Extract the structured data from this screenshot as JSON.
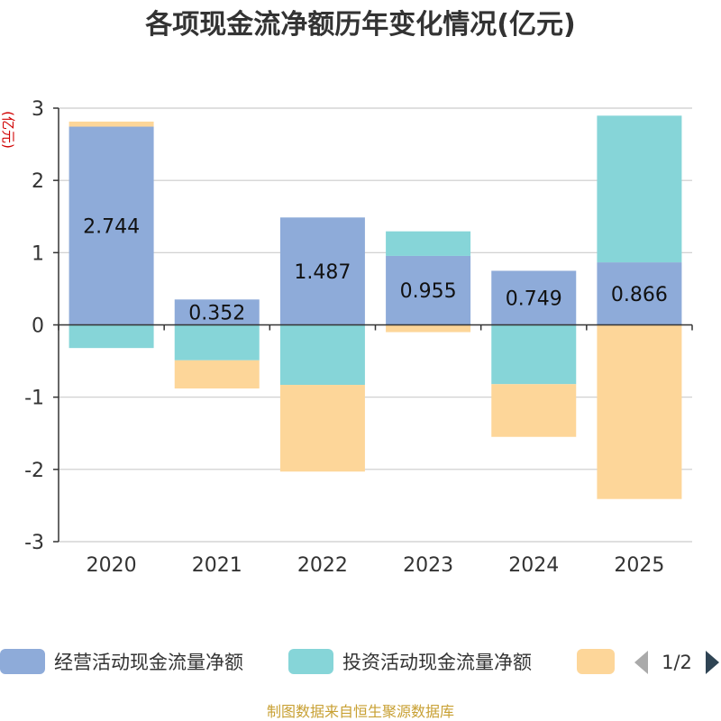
{
  "colors": {
    "operating": "#8eabd9",
    "investing": "#86d5d8",
    "financing": "#fdd699",
    "axis": "#333333",
    "grid": "#cccccc",
    "title": "#333333",
    "unit": "#d00000",
    "source": "#c8a033",
    "pager_active": "#2f4454",
    "pager_inactive": "#aaaaaa"
  },
  "chart_data": {
    "type": "bar",
    "stacked": true,
    "title": "各项现金流净额历年变化情况(亿元)",
    "ylabel": "(亿元)",
    "ylim": [
      -3,
      3
    ],
    "yticks": [
      3,
      2,
      1,
      0,
      -1,
      -2,
      -3
    ],
    "categories": [
      "2020",
      "2021",
      "2022",
      "2023",
      "2024",
      "2025"
    ],
    "series": [
      {
        "name": "经营活动现金流量净额",
        "key": "operating",
        "values": [
          2.744,
          0.352,
          1.487,
          0.955,
          0.749,
          0.866
        ],
        "labels": [
          "2.744",
          "0.352",
          "1.487",
          "0.955",
          "0.749",
          "0.866"
        ]
      },
      {
        "name": "投资活动现金流量净额",
        "key": "investing",
        "values": [
          -0.32,
          -0.49,
          -0.83,
          0.34,
          -0.82,
          2.03
        ]
      },
      {
        "name": "",
        "key": "financing",
        "values": [
          0.07,
          -0.39,
          -1.2,
          -0.1,
          -0.73,
          -2.41
        ]
      }
    ],
    "legend": {
      "items": [
        "经营活动现金流量净额",
        "投资活动现金流量净额",
        ""
      ],
      "page": "1/2"
    },
    "source": "制图数据来自恒生聚源数据库"
  }
}
